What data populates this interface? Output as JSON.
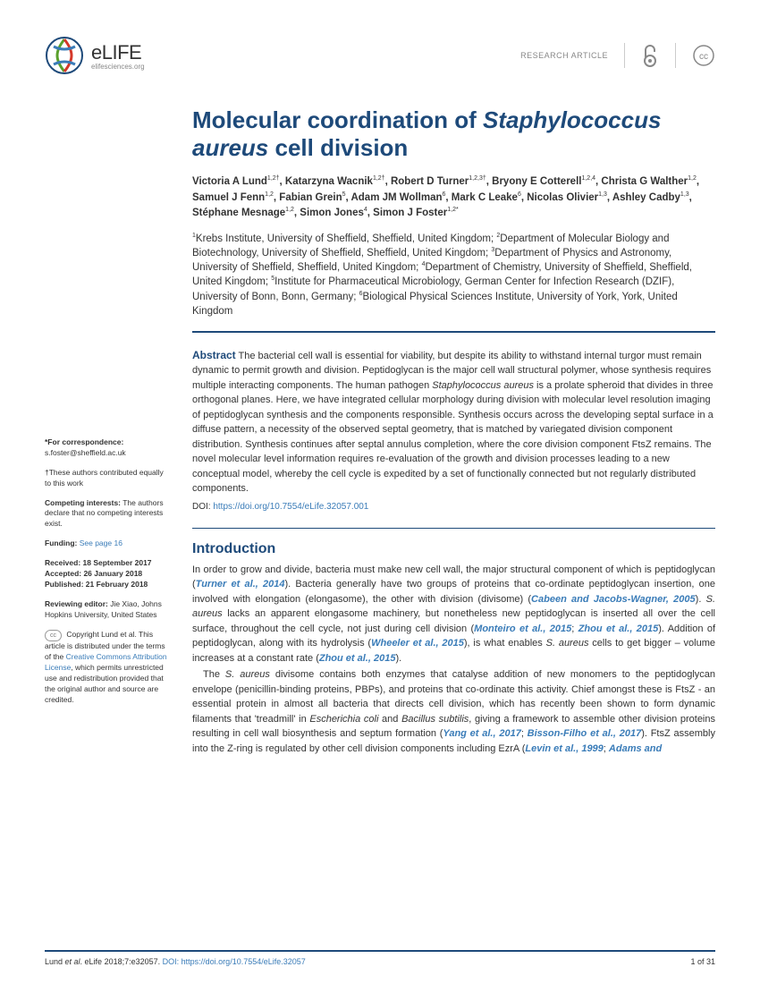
{
  "header": {
    "logo_main": "eLIFE",
    "logo_sub": "elifesciences.org",
    "article_type": "RESEARCH ARTICLE"
  },
  "title_pre": "Molecular coordination of ",
  "title_em": "Staphylococcus aureus",
  "title_post": " cell division",
  "authors_html": "Victoria A Lund<sup>1,2†</sup>, Katarzyna Wacnik<sup>1,2†</sup>, Robert D Turner<sup>1,2,3†</sup>, Bryony E Cotterell<sup>1,2,4</sup>, Christa G Walther<sup>1,2</sup>, Samuel J Fenn<sup>1,2</sup>, Fabian Grein<sup>5</sup>, Adam JM Wollman<sup>6</sup>, Mark C Leake<sup>6</sup>, Nicolas Olivier<sup>1,3</sup>, Ashley Cadby<sup>1,3</sup>, Stéphane Mesnage<sup>1,2</sup>, Simon Jones<sup>4</sup>, Simon J Foster<sup>1,2*</sup>",
  "affiliations_html": "<sup>1</sup>Krebs Institute, University of Sheffield, Sheffield, United Kingdom; <sup>2</sup>Department of Molecular Biology and Biotechnology, University of Sheffield, Sheffield, United Kingdom; <sup>3</sup>Department of Physics and Astronomy, University of Sheffield, Sheffield, United Kingdom; <sup>4</sup>Department of Chemistry, University of Sheffield, Sheffield, United Kingdom; <sup>5</sup>Institute for Pharmaceutical Microbiology, German Center for Infection Research (DZIF), University of Bonn, Bonn, Germany; <sup>6</sup>Biological Physical Sciences Institute, University of York, York, United Kingdom",
  "abstract_label": "Abstract",
  "abstract_html": "The bacterial cell wall is essential for viability, but despite its ability to withstand internal turgor must remain dynamic to permit growth and division. Peptidoglycan is the major cell wall structural polymer, whose synthesis requires multiple interacting components. The human pathogen <em>Staphylococcus aureus</em> is a prolate spheroid that divides in three orthogonal planes. Here, we have integrated cellular morphology during division with molecular level resolution imaging of peptidoglycan synthesis and the components responsible. Synthesis occurs across the developing septal surface in a diffuse pattern, a necessity of the observed septal geometry, that is matched by variegated division component distribution. Synthesis continues after septal annulus completion, where the core division component FtsZ remains. The novel molecular level information requires re-evaluation of the growth and division processes leading to a new conceptual model, whereby the cell cycle is expedited by a set of functionally connected but not regularly distributed components.",
  "doi_label": "DOI:",
  "doi_link": "https://doi.org/10.7554/eLife.32057.001",
  "intro_heading": "Introduction",
  "intro_p1": "In order to grow and divide, bacteria must make new cell wall, the major structural component of which is peptidoglycan (<span class='ref'>Turner et al., 2014</span>). Bacteria generally have two groups of proteins that co-ordinate peptidoglycan insertion, one involved with elongation (elongasome), the other with division (divisome) (<span class='ref'>Cabeen and Jacobs-Wagner, 2005</span>). <em>S. aureus</em> lacks an apparent elongasome machinery, but nonetheless new peptidoglycan is inserted all over the cell surface, throughout the cell cycle, not just during cell division (<span class='ref'>Monteiro et al., 2015</span>; <span class='ref'>Zhou et al., 2015</span>). Addition of peptidoglycan, along with its hydrolysis (<span class='ref'>Wheeler et al., 2015</span>), is what enables <em>S. aureus</em> cells to get bigger – volume increases at a constant rate (<span class='ref'>Zhou et al., 2015</span>).",
  "intro_p2": "The <em>S. aureus</em> divisome contains both enzymes that catalyse addition of new monomers to the peptidoglycan envelope (penicillin-binding proteins, PBPs), and proteins that co-ordinate this activity. Chief amongst these is FtsZ - an essential protein in almost all bacteria that directs cell division, which has recently been shown to form dynamic filaments that 'treadmill' in <em>Escherichia coli</em> and <em>Bacillus subtilis</em>, giving a framework to assemble other division proteins resulting in cell wall biosynthesis and septum formation (<span class='ref'>Yang et al., 2017</span>; <span class='ref'>Bisson-Filho et al., 2017</span>). FtsZ assembly into the Z-ring is regulated by other cell division components including EzrA (<span class='ref'>Levin et al., 1999</span>; <span class='ref'>Adams and</span>",
  "sidebar": {
    "correspondence_label": "*For correspondence:",
    "correspondence_email": "s.foster@sheffield.ac.uk",
    "contrib": "†These authors contributed equally to this work",
    "competing_label": "Competing interests:",
    "competing_text": " The authors declare that no competing interests exist.",
    "funding_label": "Funding:",
    "funding_link": " See page 16",
    "received": "Received: 18 September 2017",
    "accepted": "Accepted: 26 January 2018",
    "published": "Published: 21 February 2018",
    "reviewing_label": "Reviewing editor:",
    "reviewing_text": " Jie Xiao, Johns Hopkins University, United States",
    "copyright_pre": " Copyright Lund et al. This article is distributed under the terms of the ",
    "copyright_link": "Creative Commons Attribution License",
    "copyright_post": ", which permits unrestricted use and redistribution provided that the original author and source are credited.",
    "cc_badge": "cc"
  },
  "footer": {
    "citation_pre": "Lund ",
    "citation_mid": "et al",
    "citation_post": ". eLife 2018;7:e32057. ",
    "citation_doi_label": "DOI:",
    "citation_doi": " https://doi.org/10.7554/eLife.32057",
    "page": "1 of 31"
  },
  "colors": {
    "brand_blue": "#1e4a7a",
    "link_blue": "#3a7cb8",
    "text": "#333333",
    "muted": "#888888"
  }
}
